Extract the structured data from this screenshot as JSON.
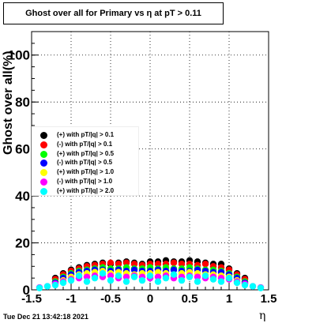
{
  "title": "Ghost over all for Primary vs   η at pT > 0.11",
  "timestamp": "Tue Dec 21 13:42:18 2021",
  "chart_data": {
    "type": "scatter",
    "title": "Ghost over all for Primary vs   η at pT > 0.11",
    "xlabel": "η",
    "ylabel": "Ghost over all(%)",
    "xlim": [
      -1.5,
      1.5
    ],
    "ylim": [
      0,
      110
    ],
    "xticks": [
      "-1.5",
      "-1",
      "-0.5",
      "0",
      "0.5",
      "1",
      "1.5"
    ],
    "yticks": [
      "0",
      "20",
      "40",
      "60",
      "80",
      "100"
    ],
    "grid": true,
    "legend_position": "middle-left",
    "series": [
      {
        "name": "(+) with pT/|q| > 0.1",
        "color": "#000000",
        "marker": "circle",
        "x": [
          -1.2,
          -1.1,
          -1.0,
          -0.9,
          -0.8,
          -0.7,
          -0.6,
          -0.5,
          -0.4,
          -0.3,
          -0.2,
          -0.1,
          0.0,
          0.1,
          0.2,
          0.3,
          0.4,
          0.5,
          0.6,
          0.7,
          0.8,
          0.9,
          1.0,
          1.1,
          1.2
        ],
        "y": [
          5,
          7,
          8.5,
          9.5,
          10.5,
          11,
          11.5,
          11,
          11.5,
          12,
          11.5,
          11,
          12,
          12,
          12.5,
          12,
          12,
          12.5,
          12,
          11.5,
          11,
          11,
          9,
          7,
          5
        ]
      },
      {
        "name": "(-) with pT/|q| > 0.1",
        "color": "#ff0000",
        "marker": "circle",
        "x": [
          -1.2,
          -1.1,
          -1.0,
          -0.9,
          -0.8,
          -0.7,
          -0.6,
          -0.5,
          -0.4,
          -0.3,
          -0.2,
          -0.1,
          0.0,
          0.1,
          0.2,
          0.3,
          0.4,
          0.5,
          0.6,
          0.7,
          0.8,
          0.9,
          1.0,
          1.1,
          1.2
        ],
        "y": [
          4.5,
          6.5,
          8,
          9,
          10,
          10.5,
          11,
          11.5,
          11,
          11.5,
          11,
          10.5,
          11,
          11,
          11,
          11.5,
          11,
          11,
          10.5,
          11,
          10,
          9.5,
          8.5,
          6.5,
          4.5
        ]
      },
      {
        "name": "(+) with pT/|q| > 0.5",
        "color": "#00ff00",
        "marker": "circle",
        "x": [
          -1.2,
          -1.1,
          -1.0,
          -0.9,
          -0.8,
          -0.7,
          -0.6,
          -0.5,
          -0.4,
          -0.3,
          -0.2,
          -0.1,
          0.0,
          0.1,
          0.2,
          0.3,
          0.4,
          0.5,
          0.6,
          0.7,
          0.8,
          0.9,
          1.0,
          1.1,
          1.2
        ],
        "y": [
          3.5,
          5.5,
          7,
          8,
          8.5,
          9,
          9.5,
          9,
          9,
          9.5,
          9,
          9,
          9.5,
          9,
          9.5,
          9,
          9,
          9.5,
          9,
          8.5,
          8.5,
          8,
          7,
          5.5,
          3.5
        ]
      },
      {
        "name": "(-) with pT/|q| > 0.5",
        "color": "#0000ff",
        "marker": "circle",
        "x": [
          -1.2,
          -1.1,
          -1.0,
          -0.9,
          -0.8,
          -0.7,
          -0.6,
          -0.5,
          -0.4,
          -0.3,
          -0.2,
          -0.1,
          0.0,
          0.1,
          0.2,
          0.3,
          0.4,
          0.5,
          0.6,
          0.7,
          0.8,
          0.9,
          1.0,
          1.1,
          1.2
        ],
        "y": [
          3,
          5,
          6.5,
          7.5,
          8,
          8.5,
          8.5,
          8,
          8.5,
          8,
          8.5,
          8,
          8,
          8.5,
          8,
          8.5,
          8,
          8,
          8.5,
          8,
          7.5,
          7.5,
          6.5,
          5,
          3
        ]
      },
      {
        "name": "(+) with pT/|q| > 1.0",
        "color": "#ffff00",
        "marker": "circle",
        "x": [
          -1.2,
          -1.1,
          -1.0,
          -0.9,
          -0.8,
          -0.7,
          -0.6,
          -0.5,
          -0.4,
          -0.3,
          -0.2,
          -0.1,
          0.0,
          0.1,
          0.2,
          0.3,
          0.4,
          0.5,
          0.6,
          0.7,
          0.8,
          0.9,
          1.0,
          1.1,
          1.2
        ],
        "y": [
          2.5,
          4,
          5.5,
          6.5,
          7,
          7.5,
          8,
          7,
          7.5,
          7,
          6.5,
          7,
          7,
          7.5,
          7,
          6.5,
          7,
          7.5,
          7,
          6.5,
          6.5,
          6,
          5.5,
          4,
          2.5
        ]
      },
      {
        "name": "(-) with pT/|q| > 1.0",
        "color": "#ff00ff",
        "marker": "circle",
        "x": [
          -1.4,
          -1.3,
          -1.2,
          -1.1,
          -1.0,
          -0.9,
          -0.8,
          -0.7,
          -0.6,
          -0.5,
          -0.4,
          -0.3,
          -0.2,
          -0.1,
          0.0,
          0.1,
          0.2,
          0.3,
          0.4,
          0.5,
          0.6,
          0.7,
          0.8,
          0.9,
          1.0,
          1.1,
          1.2,
          1.3,
          1.4
        ],
        "y": [
          1,
          1.5,
          2.5,
          3.5,
          4.5,
          5,
          5.5,
          6,
          5.5,
          6,
          5,
          5.5,
          6,
          5.5,
          5,
          5.5,
          6,
          5,
          5.5,
          6,
          5.5,
          5,
          5.5,
          5,
          4.5,
          3.5,
          2.5,
          1.5,
          1
        ]
      },
      {
        "name": "(+) with pT/|q| > 2.0",
        "color": "#00ffff",
        "marker": "circle",
        "x": [
          -1.4,
          -1.3,
          -1.2,
          -1.1,
          -1.0,
          -0.9,
          -0.8,
          -0.7,
          -0.6,
          -0.5,
          -0.4,
          -0.3,
          -0.2,
          -0.1,
          0.0,
          0.1,
          0.2,
          0.3,
          0.4,
          0.5,
          0.6,
          0.7,
          0.8,
          0.9,
          1.0,
          1.1,
          1.2,
          1.3,
          1.4
        ],
        "y": [
          0.8,
          1.5,
          2,
          3,
          4,
          6,
          3.5,
          5,
          7,
          4,
          6,
          3.5,
          5.5,
          4,
          6,
          3.5,
          5,
          6.5,
          4,
          5.5,
          3.5,
          6,
          4.5,
          3.5,
          5,
          3,
          2,
          1.5,
          0.8
        ]
      }
    ]
  }
}
